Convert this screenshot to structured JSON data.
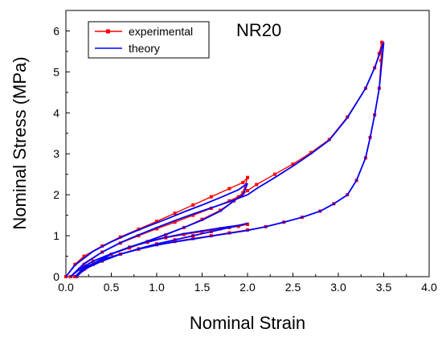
{
  "chart_data": {
    "type": "line",
    "annotation": "NR20",
    "xlabel": "Nominal Strain",
    "ylabel": "Nominal Stress (MPa)",
    "xlim": [
      0.0,
      4.0
    ],
    "ylim": [
      0,
      6.5
    ],
    "x_ticks": [
      "0.0",
      "0.5",
      "1.0",
      "1.5",
      "2.0",
      "2.5",
      "3.0",
      "3.5",
      "4.0"
    ],
    "y_ticks": [
      "0",
      "1",
      "2",
      "3",
      "4",
      "5",
      "6"
    ],
    "x_tick_values": [
      0,
      0.5,
      1.0,
      1.5,
      2.0,
      2.5,
      3.0,
      3.5,
      4.0
    ],
    "y_tick_values": [
      0,
      1,
      2,
      3,
      4,
      5,
      6
    ],
    "grid": false,
    "legend_position": "top-left",
    "series": [
      {
        "name": "experimental",
        "color": "#ff0000",
        "marker": "square",
        "segments": [
          [
            [
              0.0,
              0.0
            ],
            [
              0.1,
              0.3
            ],
            [
              0.2,
              0.5
            ],
            [
              0.4,
              0.75
            ],
            [
              0.6,
              0.97
            ],
            [
              0.8,
              1.16
            ],
            [
              1.0,
              1.35
            ],
            [
              1.2,
              1.55
            ],
            [
              1.4,
              1.75
            ],
            [
              1.6,
              1.95
            ],
            [
              1.8,
              2.15
            ],
            [
              1.95,
              2.3
            ],
            [
              2.0,
              2.42
            ]
          ],
          [
            [
              2.0,
              2.42
            ],
            [
              1.95,
              2.05
            ],
            [
              1.85,
              1.85
            ],
            [
              1.7,
              1.62
            ],
            [
              1.5,
              1.4
            ],
            [
              1.3,
              1.2
            ],
            [
              1.1,
              1.02
            ],
            [
              0.9,
              0.86
            ],
            [
              0.7,
              0.7
            ],
            [
              0.5,
              0.55
            ],
            [
              0.3,
              0.38
            ],
            [
              0.15,
              0.18
            ],
            [
              0.05,
              0.0
            ]
          ],
          [
            [
              0.05,
              0.0
            ],
            [
              0.2,
              0.3
            ],
            [
              0.4,
              0.6
            ],
            [
              0.6,
              0.82
            ],
            [
              0.8,
              1.0
            ],
            [
              1.0,
              1.17
            ],
            [
              1.2,
              1.33
            ],
            [
              1.4,
              1.5
            ],
            [
              1.6,
              1.67
            ],
            [
              1.8,
              1.85
            ],
            [
              1.9,
              1.95
            ],
            [
              2.0,
              2.1
            ],
            [
              2.1,
              2.25
            ],
            [
              2.3,
              2.5
            ],
            [
              2.5,
              2.75
            ],
            [
              2.7,
              3.03
            ],
            [
              2.9,
              3.35
            ],
            [
              3.1,
              3.9
            ],
            [
              3.3,
              4.6
            ],
            [
              3.4,
              5.1
            ],
            [
              3.45,
              5.45
            ],
            [
              3.48,
              5.72
            ]
          ],
          [
            [
              3.48,
              5.72
            ],
            [
              3.47,
              5.28
            ],
            [
              3.45,
              4.6
            ],
            [
              3.4,
              3.95
            ],
            [
              3.35,
              3.4
            ],
            [
              3.3,
              2.9
            ],
            [
              3.2,
              2.35
            ],
            [
              3.1,
              2.0
            ],
            [
              2.95,
              1.78
            ],
            [
              2.8,
              1.6
            ],
            [
              2.6,
              1.45
            ],
            [
              2.4,
              1.33
            ],
            [
              2.2,
              1.22
            ],
            [
              2.0,
              1.14
            ],
            [
              1.8,
              1.07
            ],
            [
              1.6,
              1.0
            ],
            [
              1.4,
              0.93
            ],
            [
              1.2,
              0.86
            ],
            [
              1.0,
              0.78
            ],
            [
              0.8,
              0.67
            ],
            [
              0.6,
              0.55
            ],
            [
              0.4,
              0.42
            ],
            [
              0.2,
              0.22
            ],
            [
              0.1,
              0.0
            ]
          ],
          [
            [
              0.1,
              0.0
            ],
            [
              0.3,
              0.3
            ],
            [
              0.5,
              0.55
            ],
            [
              0.7,
              0.72
            ],
            [
              0.9,
              0.84
            ],
            [
              1.1,
              0.95
            ],
            [
              1.3,
              1.03
            ],
            [
              1.5,
              1.1
            ],
            [
              1.7,
              1.17
            ],
            [
              1.9,
              1.23
            ],
            [
              2.0,
              1.28
            ]
          ],
          [
            [
              2.0,
              1.28
            ],
            [
              1.8,
              1.2
            ],
            [
              1.6,
              1.1
            ],
            [
              1.4,
              1.0
            ],
            [
              1.2,
              0.9
            ],
            [
              1.0,
              0.8
            ],
            [
              0.8,
              0.68
            ],
            [
              0.6,
              0.55
            ],
            [
              0.4,
              0.38
            ],
            [
              0.2,
              0.18
            ],
            [
              0.12,
              0.0
            ]
          ]
        ]
      },
      {
        "name": "theory",
        "color": "#0000ff",
        "marker": "none",
        "segments": [
          [
            [
              0.0,
              0.0
            ],
            [
              0.1,
              0.28
            ],
            [
              0.3,
              0.62
            ],
            [
              0.5,
              0.85
            ],
            [
              0.7,
              1.05
            ],
            [
              0.9,
              1.23
            ],
            [
              1.1,
              1.4
            ],
            [
              1.3,
              1.58
            ],
            [
              1.5,
              1.75
            ],
            [
              1.7,
              1.93
            ],
            [
              1.9,
              2.12
            ],
            [
              2.0,
              2.28
            ]
          ],
          [
            [
              2.0,
              2.28
            ],
            [
              1.95,
              2.0
            ],
            [
              1.85,
              1.85
            ],
            [
              1.7,
              1.6
            ],
            [
              1.5,
              1.38
            ],
            [
              1.3,
              1.2
            ],
            [
              1.1,
              1.03
            ],
            [
              0.9,
              0.87
            ],
            [
              0.7,
              0.72
            ],
            [
              0.5,
              0.56
            ],
            [
              0.3,
              0.38
            ],
            [
              0.15,
              0.18
            ],
            [
              0.05,
              0.0
            ]
          ],
          [
            [
              0.05,
              0.0
            ],
            [
              0.2,
              0.32
            ],
            [
              0.4,
              0.6
            ],
            [
              0.6,
              0.83
            ],
            [
              0.8,
              1.02
            ],
            [
              1.0,
              1.2
            ],
            [
              1.2,
              1.37
            ],
            [
              1.4,
              1.53
            ],
            [
              1.6,
              1.68
            ],
            [
              1.8,
              1.83
            ],
            [
              2.0,
              2.0
            ],
            [
              2.1,
              2.15
            ],
            [
              2.3,
              2.42
            ],
            [
              2.5,
              2.7
            ],
            [
              2.7,
              3.0
            ],
            [
              2.9,
              3.33
            ],
            [
              3.1,
              3.88
            ],
            [
              3.3,
              4.6
            ],
            [
              3.4,
              5.1
            ],
            [
              3.5,
              5.72
            ]
          ],
          [
            [
              3.5,
              5.72
            ],
            [
              3.48,
              5.25
            ],
            [
              3.45,
              4.6
            ],
            [
              3.4,
              3.95
            ],
            [
              3.35,
              3.4
            ],
            [
              3.3,
              2.9
            ],
            [
              3.2,
              2.35
            ],
            [
              3.1,
              2.0
            ],
            [
              2.95,
              1.78
            ],
            [
              2.8,
              1.6
            ],
            [
              2.6,
              1.45
            ],
            [
              2.4,
              1.33
            ],
            [
              2.2,
              1.22
            ],
            [
              2.0,
              1.13
            ],
            [
              1.8,
              1.06
            ],
            [
              1.6,
              0.99
            ],
            [
              1.4,
              0.92
            ],
            [
              1.2,
              0.85
            ],
            [
              1.0,
              0.77
            ],
            [
              0.8,
              0.67
            ],
            [
              0.6,
              0.55
            ],
            [
              0.4,
              0.42
            ],
            [
              0.2,
              0.22
            ],
            [
              0.1,
              0.0
            ]
          ],
          [
            [
              0.1,
              0.0
            ],
            [
              0.3,
              0.32
            ],
            [
              0.5,
              0.55
            ],
            [
              0.7,
              0.72
            ],
            [
              0.9,
              0.85
            ],
            [
              1.1,
              0.96
            ],
            [
              1.3,
              1.05
            ],
            [
              1.5,
              1.12
            ],
            [
              1.7,
              1.19
            ],
            [
              1.9,
              1.25
            ],
            [
              2.0,
              1.3
            ]
          ],
          [
            [
              2.0,
              1.3
            ],
            [
              1.8,
              1.2
            ],
            [
              1.6,
              1.1
            ],
            [
              1.4,
              1.0
            ],
            [
              1.2,
              0.9
            ],
            [
              1.0,
              0.8
            ],
            [
              0.8,
              0.68
            ],
            [
              0.6,
              0.55
            ],
            [
              0.4,
              0.38
            ],
            [
              0.2,
              0.18
            ],
            [
              0.12,
              0.0
            ]
          ]
        ]
      }
    ]
  }
}
